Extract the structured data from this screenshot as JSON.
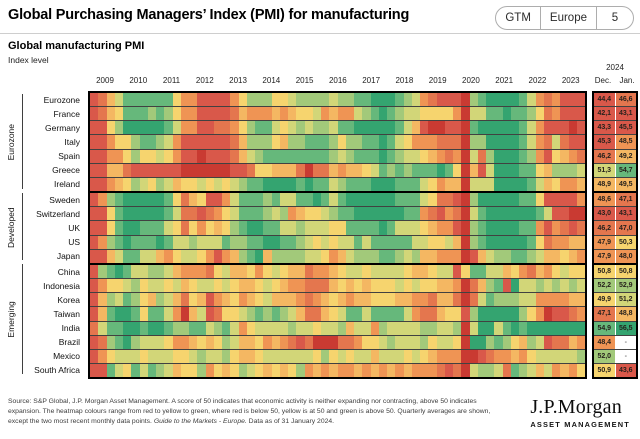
{
  "header": {
    "title": "Global Purchasing Managers’ Index (PMI) for manufacturing",
    "badge": {
      "gtm": "GTM",
      "region": "Europe",
      "page": "5"
    }
  },
  "subtitle": {
    "title": "Global manufacturing PMI",
    "unit": "Index level"
  },
  "axis": {
    "years": [
      "2009",
      "2010",
      "2011",
      "2012",
      "2013",
      "2014",
      "2015",
      "2016",
      "2017",
      "2018",
      "2019",
      "2020",
      "2021",
      "2022",
      "2023"
    ],
    "year_2024": "2024",
    "dec": "Dec.",
    "jan": "Jan."
  },
  "chart_data": {
    "type": "heatmap",
    "title": "Global manufacturing PMI",
    "x": "Quarterly averages 2009Q1-2023Q4 (4 cells per year), plus monthly Dec 2023 and Jan 2024 value columns",
    "colormap_note": "red below 50, yellow at 50, green above 50",
    "palette": {
      "a": "#c93a32",
      "b": "#d9584a",
      "c": "#e4764e",
      "d": "#ef9454",
      "e": "#f4b762",
      "f": "#f6d46e",
      "g": "#d2d678",
      "h": "#a2c97a",
      "i": "#66b87b",
      "j": "#34a470"
    },
    "palette_pmi_estimate": {
      "a": "<=42",
      "b": "~44",
      "c": "~46.5",
      "d": "~48",
      "e": "~49",
      "f": "~50",
      "g": "~51",
      "h": "~52.5",
      "i": "~54",
      "j": ">=56"
    },
    "value_color_scale": [
      {
        "max": 41.5,
        "c": "a"
      },
      {
        "max": 45.5,
        "c": "b"
      },
      {
        "max": 47.4,
        "c": "c"
      },
      {
        "max": 48.6,
        "c": "d"
      },
      {
        "max": 49.6,
        "c": "e"
      },
      {
        "max": 50.9,
        "c": "f"
      },
      {
        "max": 51.7,
        "c": "g"
      },
      {
        "max": 53.5,
        "c": "h"
      },
      {
        "max": 55.5,
        "c": "i"
      },
      {
        "max": 99,
        "c": "j"
      }
    ],
    "groups": [
      {
        "label": "Eurozone",
        "rows": [
          {
            "name": "Eurozone",
            "cells": "bcegiiiiiifddbbbbdfhhhffghhhhghhiijjjihgdcbbbahijjjjigdcdbbb",
            "dec": "44,4",
            "jan": "46,6"
          },
          {
            "name": "France",
            "cells": "bcefiiihihfddbbbbcedddedeffgdeddghijihggffffdaggiijiihfcdbbb",
            "dec": "42,1",
            "jan": "43,1"
          },
          {
            "name": "Germany",
            "cells": "bbfhjjjjjigddbbccdfhiigfghghhgiijjjjjigebaabbaijjjjjigdbbbab",
            "dec": "43,3",
            "jan": "45,5"
          },
          {
            "name": "Italy",
            "cells": "bbdffhiihgdbbbbbbcehhhfehhiiihfhhiijigfdddcccahhjjjjigdcgcbb",
            "dec": "45,3",
            "jan": "48,5"
          },
          {
            "name": "Spain",
            "cells": "bbddfhffgfdbbabbbceghiiiiiiiihghiiijihggfedcdagchjjjihdbfedc",
            "dec": "46,2",
            "jan": "49,2"
          },
          {
            "name": "Greece",
            "cells": "bbeecbbbbbbaaaaaabbcffeeecaccedeefgihihiiijifaebgjjjiifehhhg",
            "dec": "51,3",
            "jan": "54,7"
          },
          {
            "name": "Ireland",
            "cells": "bbdefhgfhgeffgfgfghiijjjjijiighiiijjjiiigfdeeagggjjjjigefdde",
            "dec": "48,9",
            "jan": "49,5"
          }
        ]
      },
      {
        "label": "Developed",
        "rows": [
          {
            "name": "Sweden",
            "cells": "bdhijjjjjifcefbbdgiiihiggiijigijjjjjjiiigfccbahjjjjjiifbbbbd",
            "dec": "48,6",
            "jan": "47,1"
          },
          {
            "name": "Switzerland",
            "cells": "bbfijjjjjigccbcdfgiiihghdeffghiijjjjjjiidcbdcagijjjjjjigbbaa",
            "dec": "43,0",
            "jan": "43,1"
          },
          {
            "name": "UK",
            "cells": "bbfijjiiigfcfdfefhijjiigghgggffiiiijigggfeddbahijjjjiidbdcbc",
            "dec": "46,2",
            "jan": "47,0"
          },
          {
            "name": "US",
            "cells": "bdhijiiijigghgggihhiijjiihgfgfggigiiiiiggffgeahijjjjjifcddee",
            "dec": "47,9",
            "jan": "50,3"
          },
          {
            "name": "Japan",
            "cells": "bbegiiggedfggfdbdehijehhhhggfdeghhhiihgheedddabeghhiihgeefed",
            "dec": "47,9",
            "jan": "48,0"
          }
        ]
      },
      {
        "label": "Emerging",
        "rows": [
          {
            "name": "China",
            "cells": "bhijigghhgedddcfgeefdfgfeecddefggfggggfeefggbfiiggefdcedfgff",
            "dec": "50,8",
            "jan": "50,8"
          },
          {
            "name": "Indonesia",
            "cells": "bdffghfggfgefggfgfeefgfeddcccefefefffgfgffeedacehibjgghghghg",
            "dec": "52,2",
            "jan": "52,9"
          },
          {
            "name": "Korea",
            "cells": "behgihfehgecfebdefdefgeeedcdefedeefffeeddceecacgihhhggddddee",
            "dec": "49,9",
            "jan": "51,2"
          },
          {
            "name": "Taiwan",
            "cells": "beijjifiigdaegbcffghihihgeccefgiigiiiigdcceffbhjjjjjhfdabbcd",
            "dec": "47,1",
            "jan": "48,8"
          },
          {
            "name": "India",
            "cells": "cgiijjijjihhiighigdfgggghggfggheggdhgggghhgghagjjgijijjjjjjj",
            "dec": "54,9",
            "jan": "56,5"
          },
          {
            "name": "Brazil",
            "cells": "bchijhgggfddefefhgeefdedcbcaaaccdffghggghfggfajjhihfehgbcced",
            "dec": "48,4",
            "jan": "-"
          },
          {
            "name": "Mexico",
            "cells": "bdfgggfgggffghgghfeefggggggfhfgfggegggfgfedddaabcddedfgggggh",
            "dec": "52,0",
            "jan": "-"
          },
          {
            "name": "South Africa",
            "cells": "bbigfigihgeffhdfefhgfefefhdededdededededddcbcaghhgcihgegdedf",
            "dec": "50,9",
            "jan": "43,6"
          }
        ]
      }
    ]
  },
  "footer": {
    "text": "Source: S&P Global, J.P. Morgan Asset Management. A score of 50 indicates that economic activity is neither expanding nor contracting, above 50 indicates expansion. The heatmap colours range from red to yellow to green, where red is below 50, yellow is at 50 and green is above 50. Quarterly averages are shown, except the two most recent monthly data points. ",
    "italic": "Guide to the Markets - Europe.",
    "after": " Data as of 31 January 2024."
  },
  "logo": {
    "name": "J.P.Morgan",
    "sub": "ASSET MANAGEMENT"
  }
}
